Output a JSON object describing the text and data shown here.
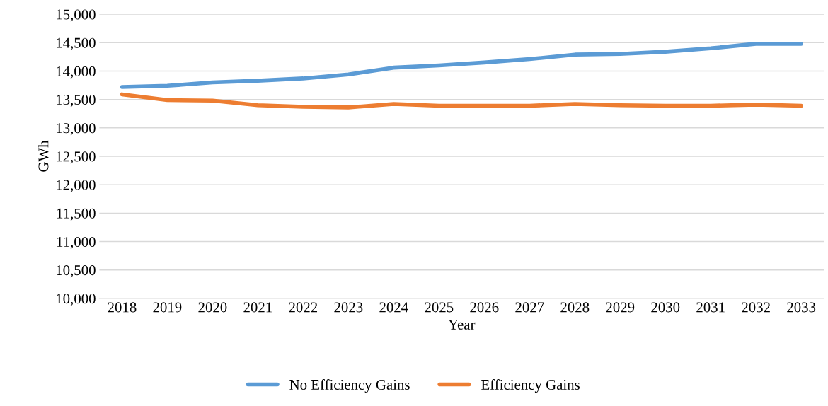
{
  "chart_data": {
    "type": "line",
    "xlabel": "Year",
    "ylabel": "GWh",
    "categories": [
      "2018",
      "2019",
      "2020",
      "2021",
      "2022",
      "2023",
      "2024",
      "2025",
      "2026",
      "2027",
      "2028",
      "2029",
      "2030",
      "2031",
      "2032",
      "2033"
    ],
    "series": [
      {
        "name": "No Efficiency Gains",
        "color": "#5b9bd5",
        "values": [
          13720,
          13740,
          13800,
          13830,
          13870,
          13940,
          14060,
          14100,
          14150,
          14210,
          14290,
          14300,
          14340,
          14400,
          14480,
          14480
        ]
      },
      {
        "name": "Efficiency Gains",
        "color": "#ed7d31",
        "values": [
          13590,
          13490,
          13480,
          13400,
          13370,
          13360,
          13420,
          13390,
          13390,
          13390,
          13420,
          13400,
          13390,
          13390,
          13410,
          13390
        ]
      }
    ],
    "ylim": [
      10000,
      15000
    ],
    "yticks": [
      {
        "value": 10000,
        "label": "10,000"
      },
      {
        "value": 10500,
        "label": "10,500"
      },
      {
        "value": 11000,
        "label": "11,000"
      },
      {
        "value": 11500,
        "label": "11,500"
      },
      {
        "value": 12000,
        "label": "12,000"
      },
      {
        "value": 12500,
        "label": "12,500"
      },
      {
        "value": 13000,
        "label": "13,000"
      },
      {
        "value": 13500,
        "label": "13,500"
      },
      {
        "value": 14000,
        "label": "14,000"
      },
      {
        "value": 14500,
        "label": "14,500"
      },
      {
        "value": 15000,
        "label": "15,000"
      }
    ],
    "grid": "y",
    "legend": "bottom",
    "marker": "none",
    "line_style": "solid"
  }
}
